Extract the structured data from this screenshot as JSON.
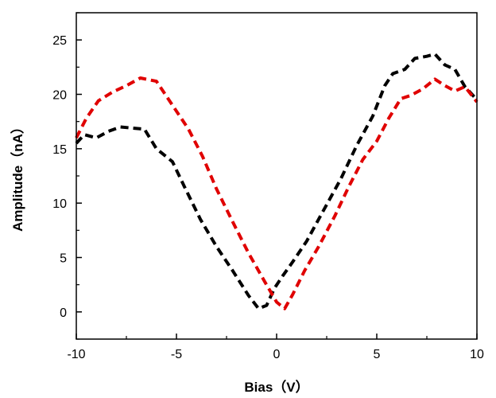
{
  "chart_data": {
    "type": "line",
    "title": "",
    "xlabel": "Bias（V）",
    "ylabel": "Amplitude（nA）",
    "xlim": [
      -10,
      10
    ],
    "ylim": [
      -2.5,
      27.5
    ],
    "xticks": [
      -10,
      -5,
      0,
      5,
      10
    ],
    "yticks": [
      0,
      5,
      10,
      15,
      20,
      25
    ],
    "grid": false,
    "legend": "none",
    "series": [
      {
        "color": "#000000",
        "style": "dashed",
        "points": [
          [
            -10,
            15.5
          ],
          [
            -9.6,
            16.3
          ],
          [
            -9.0,
            16.0
          ],
          [
            -8.4,
            16.6
          ],
          [
            -7.8,
            17.0
          ],
          [
            -7.2,
            16.9
          ],
          [
            -6.6,
            16.8
          ],
          [
            -6.0,
            15.0
          ],
          [
            -5.2,
            13.8
          ],
          [
            -4.6,
            11.5
          ],
          [
            -3.8,
            8.5
          ],
          [
            -3.0,
            6.0
          ],
          [
            -2.2,
            3.8
          ],
          [
            -1.4,
            1.5
          ],
          [
            -0.9,
            0.3
          ],
          [
            -0.5,
            0.6
          ],
          [
            -0.1,
            2.2
          ],
          [
            0.3,
            3.3
          ],
          [
            0.8,
            4.6
          ],
          [
            1.5,
            6.5
          ],
          [
            2.3,
            9.2
          ],
          [
            3.2,
            12.2
          ],
          [
            4.0,
            15.3
          ],
          [
            4.8,
            18.0
          ],
          [
            5.4,
            20.8
          ],
          [
            5.8,
            21.9
          ],
          [
            6.4,
            22.3
          ],
          [
            6.9,
            23.3
          ],
          [
            7.5,
            23.5
          ],
          [
            7.9,
            23.7
          ],
          [
            8.4,
            22.7
          ],
          [
            8.9,
            22.3
          ],
          [
            9.4,
            20.7
          ],
          [
            10,
            19.5
          ]
        ]
      },
      {
        "color": "#e00000",
        "style": "dashed",
        "points": [
          [
            -10,
            16.0
          ],
          [
            -9.5,
            17.8
          ],
          [
            -8.9,
            19.4
          ],
          [
            -8.2,
            20.2
          ],
          [
            -7.5,
            20.8
          ],
          [
            -6.8,
            21.5
          ],
          [
            -6.0,
            21.2
          ],
          [
            -5.2,
            19.0
          ],
          [
            -4.4,
            16.8
          ],
          [
            -3.7,
            14.3
          ],
          [
            -3.0,
            11.3
          ],
          [
            -2.2,
            8.3
          ],
          [
            -1.4,
            5.4
          ],
          [
            -0.6,
            2.8
          ],
          [
            0.0,
            0.9
          ],
          [
            0.4,
            0.3
          ],
          [
            0.8,
            1.6
          ],
          [
            1.4,
            3.8
          ],
          [
            2.1,
            6.0
          ],
          [
            2.9,
            8.8
          ],
          [
            3.6,
            11.5
          ],
          [
            4.3,
            14.0
          ],
          [
            5.0,
            15.7
          ],
          [
            5.6,
            17.8
          ],
          [
            6.2,
            19.6
          ],
          [
            6.7,
            19.9
          ],
          [
            7.3,
            20.5
          ],
          [
            7.9,
            21.4
          ],
          [
            8.4,
            20.8
          ],
          [
            8.9,
            20.3
          ],
          [
            9.4,
            20.7
          ],
          [
            10,
            19.3
          ]
        ]
      }
    ]
  }
}
